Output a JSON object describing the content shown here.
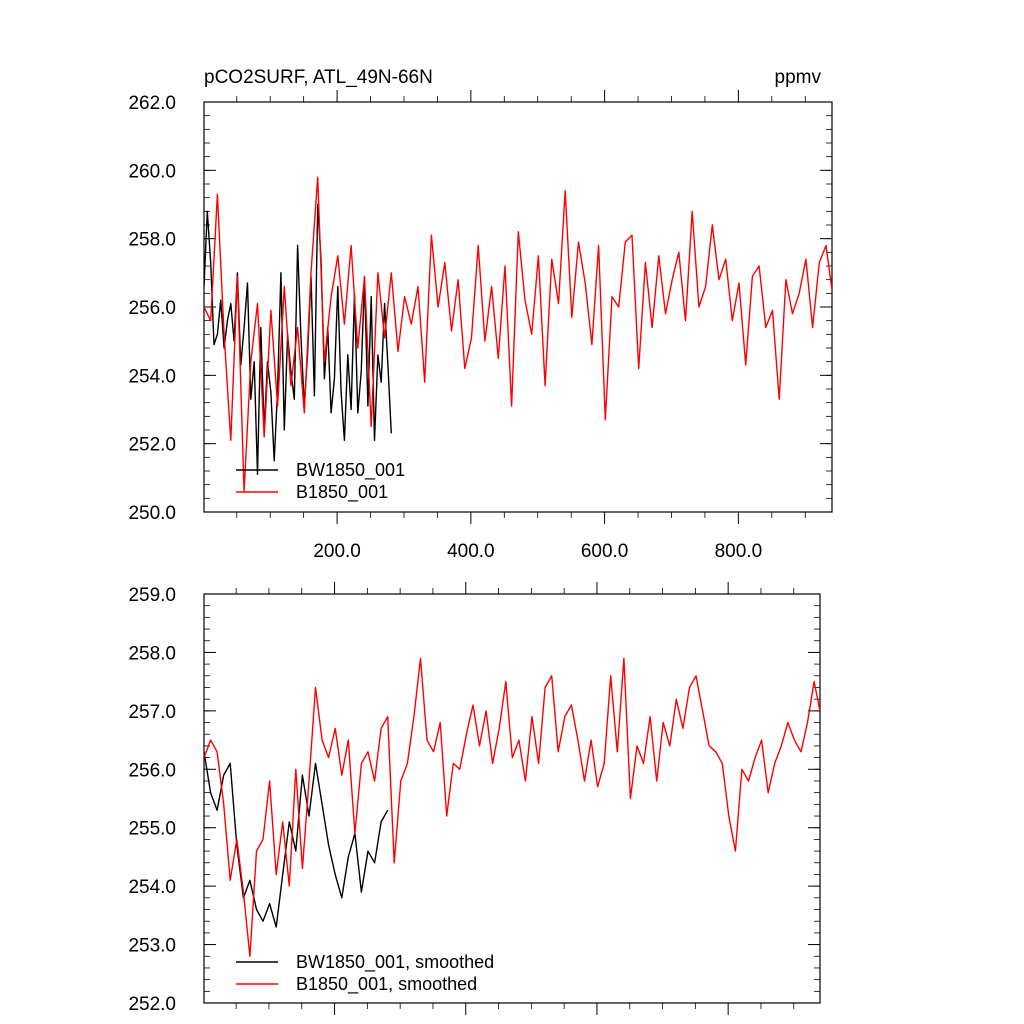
{
  "chart_data": [
    {
      "type": "line",
      "title": "pCO2SURF, ATL_49N-66N",
      "units": "ppmv",
      "xlim": [
        1,
        940
      ],
      "ylim": [
        250.0,
        262.0
      ],
      "x_tick_labels": [
        "200.0",
        "400.0",
        "600.0",
        "800.0"
      ],
      "x_ticks": [
        200,
        400,
        600,
        800
      ],
      "y_tick_labels": [
        "250.0",
        "252.0",
        "254.0",
        "256.0",
        "258.0",
        "260.0",
        "262.0"
      ],
      "y_ticks": [
        250,
        252,
        254,
        256,
        258,
        260,
        262
      ],
      "legend_position": "bottom-left",
      "series": [
        {
          "name": "BW1850_001",
          "color": "#000000",
          "x": [
            1,
            6,
            11,
            16,
            21,
            26,
            31,
            36,
            41,
            46,
            51,
            56,
            61,
            66,
            71,
            76,
            81,
            86,
            91,
            96,
            101,
            106,
            111,
            116,
            121,
            126,
            131,
            136,
            141,
            146,
            151,
            156,
            161,
            166,
            171,
            176,
            181,
            186,
            191,
            196,
            201,
            206,
            211,
            216,
            221,
            226,
            231,
            236,
            241,
            246,
            251,
            256,
            261,
            266,
            271,
            276,
            281
          ],
          "values": [
            256.6,
            258.8,
            257.3,
            254.9,
            255.2,
            256.2,
            254.8,
            255.6,
            256.1,
            255.0,
            257.0,
            254.3,
            255.4,
            256.7,
            253.3,
            254.4,
            251.1,
            255.4,
            252.4,
            254.4,
            253.5,
            251.5,
            253.6,
            257.0,
            252.4,
            255.2,
            254.1,
            253.3,
            257.8,
            255.1,
            253.1,
            254.7,
            256.9,
            253.4,
            259.0,
            257.4,
            253.9,
            255.4,
            252.9,
            253.9,
            256.6,
            253.5,
            252.1,
            254.6,
            253.0,
            256.4,
            252.9,
            254.1,
            256.8,
            253.1,
            256.3,
            252.1,
            254.6,
            253.8,
            256.1,
            254.3,
            252.3
          ]
        },
        {
          "name": "B1850_001",
          "color": "#ff0000",
          "x": [
            1,
            11,
            21,
            31,
            41,
            51,
            61,
            71,
            81,
            91,
            101,
            111,
            121,
            131,
            141,
            151,
            161,
            171,
            181,
            191,
            201,
            211,
            221,
            231,
            241,
            251,
            261,
            271,
            281,
            291,
            301,
            311,
            321,
            331,
            341,
            351,
            361,
            371,
            381,
            391,
            401,
            411,
            421,
            431,
            441,
            451,
            461,
            471,
            481,
            491,
            501,
            511,
            521,
            531,
            541,
            551,
            561,
            571,
            581,
            591,
            601,
            611,
            621,
            631,
            641,
            651,
            661,
            671,
            681,
            691,
            701,
            711,
            721,
            731,
            741,
            751,
            761,
            771,
            781,
            791,
            801,
            811,
            821,
            831,
            841,
            851,
            861,
            871,
            881,
            891,
            901,
            911,
            921,
            931,
            940
          ],
          "values": [
            256.0,
            255.6,
            259.3,
            255.2,
            252.1,
            256.9,
            250.6,
            254.4,
            256.1,
            252.2,
            255.9,
            253.1,
            256.6,
            253.7,
            255.4,
            252.9,
            257.0,
            259.8,
            254.4,
            256.3,
            257.5,
            255.5,
            257.8,
            254.8,
            256.9,
            252.5,
            257.0,
            255.1,
            257.0,
            254.7,
            256.3,
            255.5,
            256.6,
            253.8,
            258.1,
            256.0,
            257.3,
            255.3,
            256.8,
            254.2,
            255.1,
            257.8,
            255.0,
            256.6,
            254.5,
            257.2,
            253.1,
            258.2,
            256.2,
            255.2,
            257.5,
            253.7,
            257.4,
            256.1,
            259.4,
            255.7,
            257.9,
            256.7,
            254.9,
            257.8,
            252.7,
            256.3,
            256.0,
            257.9,
            258.1,
            254.2,
            257.3,
            255.4,
            257.5,
            255.8,
            256.8,
            257.6,
            255.6,
            258.8,
            256.0,
            256.6,
            258.4,
            256.8,
            257.4,
            255.6,
            256.7,
            254.3,
            256.9,
            257.2,
            255.4,
            255.9,
            253.3,
            256.8,
            255.8,
            256.4,
            257.4,
            255.4,
            257.3,
            257.8,
            256.5
          ]
        }
      ]
    },
    {
      "type": "line",
      "title": "",
      "xlim": [
        1,
        940
      ],
      "ylim": [
        252.0,
        259.0
      ],
      "y_tick_labels": [
        "252.0",
        "253.0",
        "254.0",
        "255.0",
        "256.0",
        "257.0",
        "258.0",
        "259.0"
      ],
      "y_ticks": [
        252,
        253,
        254,
        255,
        256,
        257,
        258,
        259
      ],
      "legend_position": "bottom-left",
      "series": [
        {
          "name": "BW1850_001, smoothed",
          "color": "#000000",
          "x": [
            1,
            11,
            21,
            31,
            41,
            51,
            61,
            71,
            81,
            91,
            101,
            111,
            121,
            131,
            141,
            151,
            161,
            171,
            181,
            191,
            201,
            211,
            221,
            231,
            241,
            251,
            261,
            271,
            281
          ],
          "values": [
            256.3,
            255.6,
            255.3,
            255.9,
            256.1,
            254.7,
            253.8,
            254.1,
            253.6,
            253.4,
            253.7,
            253.3,
            254.2,
            255.1,
            254.6,
            255.9,
            255.2,
            256.1,
            255.4,
            254.7,
            254.2,
            253.8,
            254.5,
            254.9,
            253.9,
            254.6,
            254.4,
            255.1,
            255.3
          ]
        },
        {
          "name": "B1850_001, smoothed",
          "color": "#ff0000",
          "x": [
            1,
            11,
            21,
            31,
            41,
            51,
            61,
            71,
            81,
            91,
            101,
            111,
            121,
            131,
            141,
            151,
            161,
            171,
            181,
            191,
            201,
            211,
            221,
            231,
            241,
            251,
            261,
            271,
            281,
            291,
            301,
            311,
            321,
            331,
            341,
            351,
            361,
            371,
            381,
            391,
            401,
            411,
            421,
            431,
            441,
            451,
            461,
            471,
            481,
            491,
            501,
            511,
            521,
            531,
            541,
            551,
            561,
            571,
            581,
            591,
            601,
            611,
            621,
            631,
            641,
            651,
            661,
            671,
            681,
            691,
            701,
            711,
            721,
            731,
            741,
            751,
            761,
            771,
            781,
            791,
            801,
            811,
            821,
            831,
            841,
            851,
            861,
            871,
            881,
            891,
            901,
            911,
            921,
            931,
            940
          ],
          "values": [
            256.2,
            256.5,
            256.3,
            255.4,
            254.1,
            254.8,
            253.9,
            252.8,
            254.6,
            254.8,
            255.8,
            254.2,
            255.1,
            254.0,
            256.0,
            254.3,
            255.8,
            257.4,
            256.5,
            256.2,
            256.7,
            255.9,
            256.5,
            254.9,
            256.1,
            256.3,
            255.8,
            256.7,
            256.9,
            254.4,
            255.8,
            256.1,
            256.9,
            257.9,
            256.5,
            256.3,
            256.8,
            255.2,
            256.1,
            256.0,
            256.6,
            257.1,
            256.4,
            257.0,
            256.1,
            256.7,
            257.5,
            256.2,
            256.5,
            255.8,
            256.9,
            256.1,
            257.4,
            257.6,
            256.3,
            256.9,
            257.1,
            256.5,
            255.8,
            256.5,
            255.7,
            256.1,
            257.6,
            256.3,
            257.9,
            255.5,
            256.4,
            256.1,
            256.9,
            255.8,
            256.8,
            256.4,
            257.2,
            256.7,
            257.4,
            257.6,
            257.0,
            256.4,
            256.3,
            256.1,
            255.2,
            254.6,
            256.0,
            255.8,
            256.2,
            256.5,
            255.6,
            256.1,
            256.4,
            256.8,
            256.5,
            256.3,
            256.8,
            257.5,
            257.0
          ]
        }
      ]
    }
  ]
}
